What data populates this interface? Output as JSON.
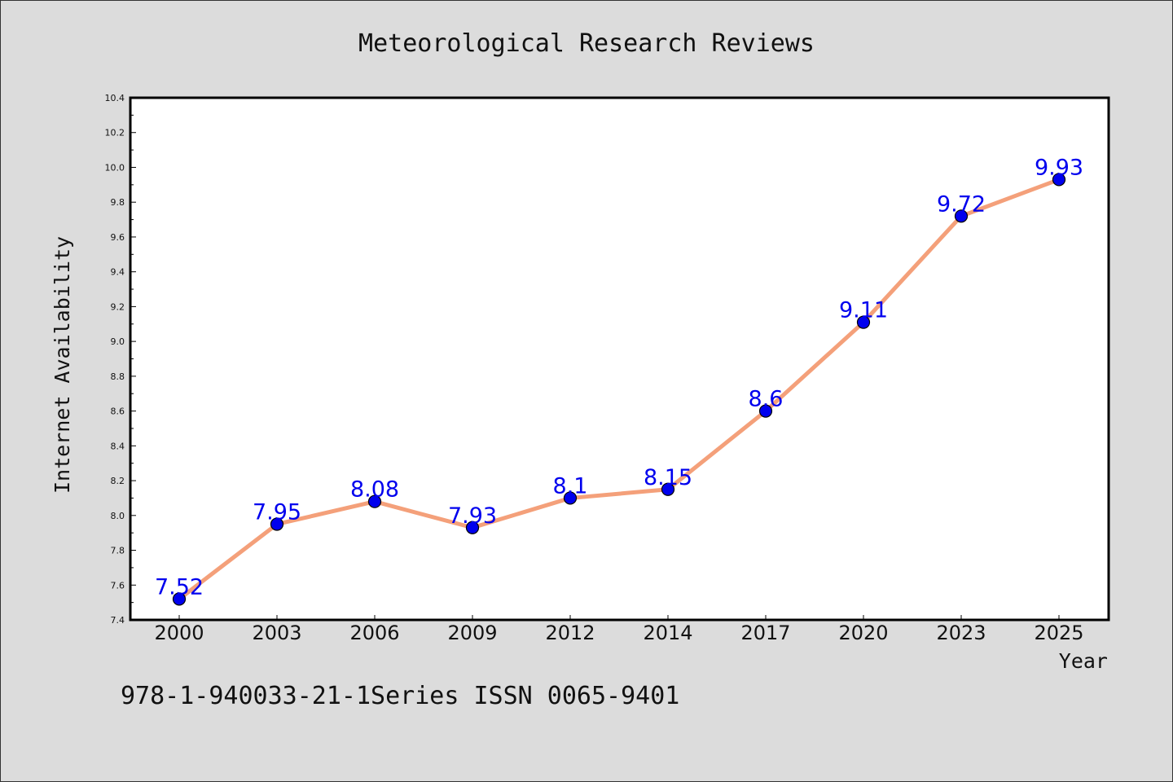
{
  "chart_data": {
    "type": "line",
    "title": "Meteorological Research Reviews",
    "xlabel": "Year",
    "ylabel": "Internet Availability",
    "categories": [
      "2000",
      "2003",
      "2006",
      "2009",
      "2012",
      "2014",
      "2017",
      "2020",
      "2023",
      "2025"
    ],
    "series": [
      {
        "values": [
          7.52,
          7.95,
          8.08,
          7.93,
          8.1,
          8.15,
          8.6,
          9.11,
          9.72,
          9.93
        ],
        "labels": [
          "7.52",
          "7.95",
          "8.08",
          "7.93",
          "8.1",
          "8.15",
          "8.6",
          "9.11",
          "9.72",
          "9.93"
        ],
        "line_color": "#f4a07a",
        "marker_color": "#0000ee"
      }
    ],
    "ylim": [
      7.4,
      10.4
    ],
    "yticks": [
      "7.4",
      "7.6",
      "7.8",
      "8.0",
      "8.2",
      "8.4",
      "8.6",
      "8.8",
      "9.0",
      "9.2",
      "9.4",
      "9.6",
      "9.8",
      "10.0",
      "10.2",
      "10.4"
    ],
    "grid": false,
    "footer": "978-1-940033-21-1Series ISSN 0065-9401",
    "background": "#dcdcdc",
    "plot_background": "#ffffff"
  }
}
